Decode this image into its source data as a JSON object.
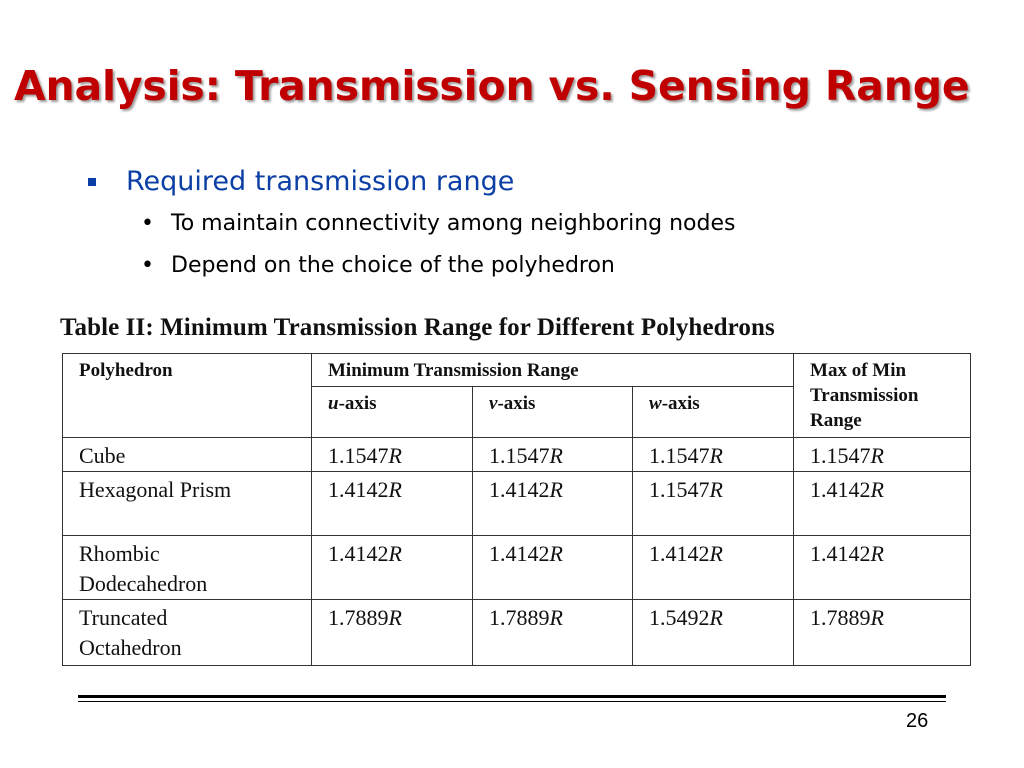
{
  "slide": {
    "title": "Analysis: Transmission vs. Sensing Range",
    "bullet": "Required transmission range",
    "sub_bullets": [
      "To maintain connectivity among neighboring nodes",
      "Depend on the choice of the polyhedron"
    ],
    "page_number": "26",
    "colors": {
      "title": "#c00000",
      "bullet": "#0b3fa6"
    }
  },
  "table": {
    "caption": "Table II: Minimum Transmission Range for Different Polyhedrons",
    "headers": {
      "polyhedron": "Polyhedron",
      "min_range": "Minimum Transmission Range",
      "u_axis_var": "u",
      "u_axis_suffix": "-axis",
      "v_axis_var": "v",
      "v_axis_suffix": "-axis",
      "w_axis_var": "w",
      "w_axis_suffix": "-axis",
      "max_of_min": "Max of Min Transmission Range"
    },
    "unit": "R",
    "rows": [
      {
        "name_line1": "Cube",
        "name_line2": "",
        "u": "1.1547",
        "v": "1.1547",
        "w": "1.1547",
        "max": "1.1547"
      },
      {
        "name_line1": "Hexagonal Prism",
        "name_line2": "",
        "u": "1.4142",
        "v": "1.4142",
        "w": "1.1547",
        "max": "1.4142"
      },
      {
        "name_line1": "Rhombic",
        "name_line2": "Dodecahedron",
        "u": "1.4142",
        "v": "1.4142",
        "w": "1.4142",
        "max": "1.4142"
      },
      {
        "name_line1": "Truncated",
        "name_line2": "Octahedron",
        "u": "1.7889",
        "v": "1.7889",
        "w": "1.5492",
        "max": "1.7889"
      }
    ]
  }
}
